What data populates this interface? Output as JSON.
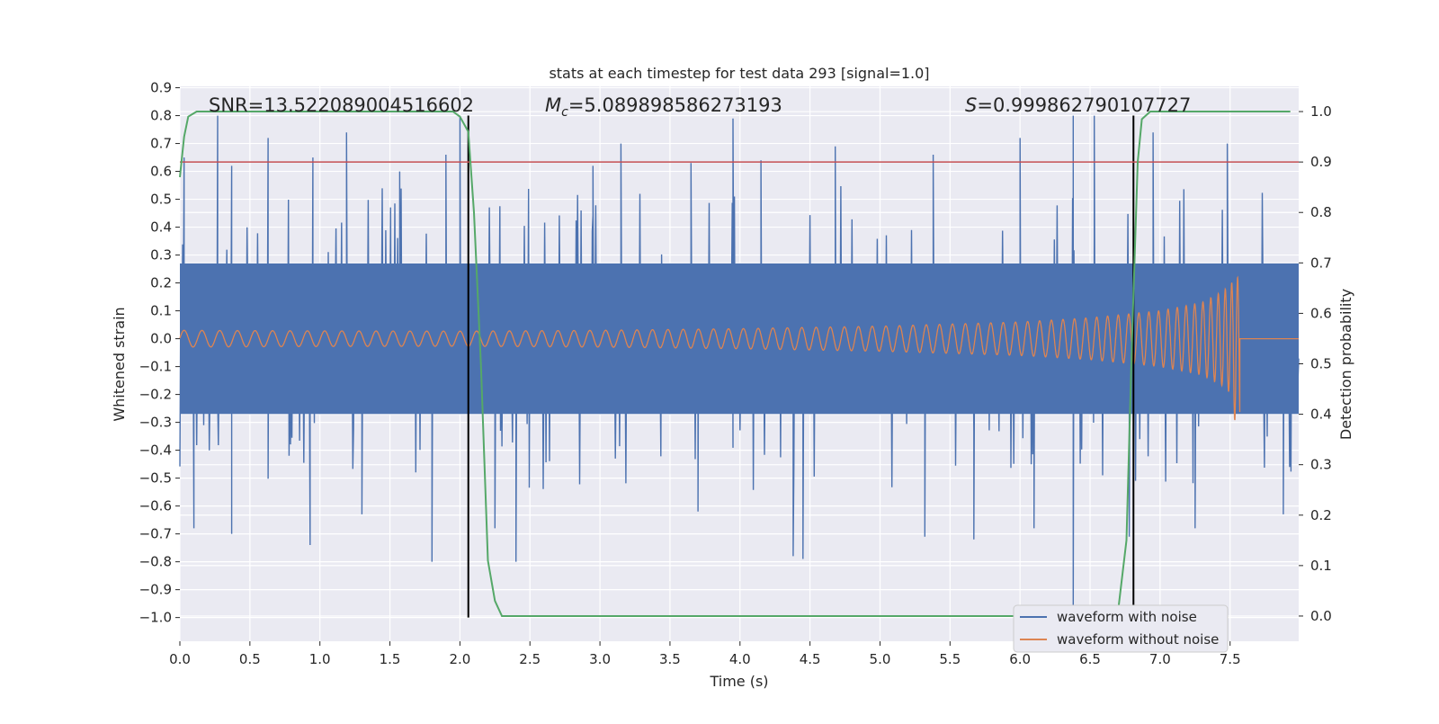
{
  "chart_data": {
    "type": "line",
    "title": "stats at each timestep for test data 293 [signal=1.0]",
    "xlabel": "Time (s)",
    "ylabel": "Whitened strain",
    "ylabel_right": "Detection probability",
    "xlim": [
      0.0,
      7.99
    ],
    "ylim": [
      -1.085,
      0.905
    ],
    "ylim_right": [
      -0.05,
      1.05
    ],
    "xticks": [
      0.0,
      0.5,
      1.0,
      1.5,
      2.0,
      2.5,
      3.0,
      3.5,
      4.0,
      4.5,
      5.0,
      5.5,
      6.0,
      6.5,
      7.0,
      7.5
    ],
    "xtick_labels": [
      "0.0",
      "0.5",
      "1.0",
      "1.5",
      "2.0",
      "2.5",
      "3.0",
      "3.5",
      "4.0",
      "4.5",
      "5.0",
      "5.5",
      "6.0",
      "6.5",
      "7.0",
      "7.5"
    ],
    "yticks": [
      0.9,
      0.8,
      0.7,
      0.6,
      0.5,
      0.4,
      0.3,
      0.2,
      0.1,
      0.0,
      -0.1,
      -0.2,
      -0.3,
      -0.4,
      -0.5,
      -0.6,
      -0.7,
      -0.8,
      -0.9,
      -1.0
    ],
    "ytick_labels": [
      "0.9",
      "0.8",
      "0.7",
      "0.6",
      "0.5",
      "0.4",
      "0.3",
      "0.2",
      "0.1",
      "0.0",
      "−0.1",
      "−0.2",
      "−0.3",
      "−0.4",
      "−0.5",
      "−0.6",
      "−0.7",
      "−0.8",
      "−0.9",
      "−1.0"
    ],
    "yticks_right": [
      1.0,
      0.9,
      0.8,
      0.7,
      0.6,
      0.5,
      0.4,
      0.3,
      0.2,
      0.1,
      0.0
    ],
    "ytick_labels_right": [
      "1.0",
      "0.9",
      "0.8",
      "0.7",
      "0.6",
      "0.5",
      "0.4",
      "0.3",
      "0.2",
      "0.1",
      "0.0"
    ],
    "grid": true,
    "legend_position": "lower-right",
    "annotations": {
      "snr": "SNR=13.522089004516602",
      "mc_symbol": "M",
      "mc_subscript": "c",
      "mc_value": "=5.089898586273193",
      "s_symbol": "S",
      "s_value": "=0.999862790107727"
    },
    "threshold": {
      "value": 0.9,
      "axis": "right",
      "color": "#c44e52"
    },
    "vlines": [
      {
        "x": 2.06,
        "ymin": -1.0,
        "ymax": 0.8,
        "color": "#000000"
      },
      {
        "x": 6.81,
        "ymin": -1.0,
        "ymax": 0.8,
        "color": "#000000"
      }
    ],
    "series": [
      {
        "name": "waveform with noise",
        "color": "#4c72b0",
        "axis": "left",
        "description": "noisy whitened strain, core band about ±0.27, spikes up to about 0.8 and down to about −1.0",
        "peaks": [
          [
            0.03,
            0.65
          ],
          [
            0.27,
            0.8
          ],
          [
            0.37,
            0.62
          ],
          [
            0.63,
            0.72
          ],
          [
            0.95,
            0.65
          ],
          [
            1.19,
            0.74
          ],
          [
            1.57,
            0.6
          ],
          [
            1.9,
            0.66
          ],
          [
            2.0,
            0.8
          ],
          [
            2.95,
            0.62
          ],
          [
            3.15,
            0.7
          ],
          [
            3.65,
            0.63
          ],
          [
            3.95,
            0.79
          ],
          [
            4.15,
            0.64
          ],
          [
            4.68,
            0.69
          ],
          [
            5.38,
            0.66
          ],
          [
            6.0,
            0.72
          ],
          [
            6.38,
            0.8
          ],
          [
            6.53,
            0.8
          ],
          [
            6.95,
            0.74
          ],
          [
            7.48,
            0.7
          ]
        ],
        "troughs": [
          [
            0.1,
            -0.68
          ],
          [
            0.37,
            -0.7
          ],
          [
            0.93,
            -0.74
          ],
          [
            1.3,
            -0.63
          ],
          [
            1.8,
            -0.8
          ],
          [
            2.25,
            -0.68
          ],
          [
            2.4,
            -0.8
          ],
          [
            3.7,
            -0.62
          ],
          [
            4.38,
            -0.78
          ],
          [
            4.45,
            -0.79
          ],
          [
            5.32,
            -0.71
          ],
          [
            5.67,
            -0.72
          ],
          [
            6.1,
            -0.68
          ],
          [
            6.38,
            -0.98
          ],
          [
            6.78,
            -0.71
          ],
          [
            7.25,
            -0.68
          ],
          [
            7.88,
            -0.63
          ]
        ]
      },
      {
        "name": "waveform without noise",
        "color": "#dd8452",
        "axis": "left",
        "description": "chirp signal growing in amplitude until merger near 7.57 s",
        "envelope": [
          [
            0.0,
            0.03
          ],
          [
            1.0,
            0.028
          ],
          [
            2.0,
            0.027
          ],
          [
            3.0,
            0.03
          ],
          [
            4.0,
            0.036
          ],
          [
            5.0,
            0.045
          ],
          [
            6.0,
            0.06
          ],
          [
            6.5,
            0.075
          ],
          [
            7.0,
            0.1
          ],
          [
            7.3,
            0.13
          ],
          [
            7.45,
            0.17
          ],
          [
            7.55,
            0.22
          ],
          [
            7.57,
            0.22
          ]
        ],
        "trough_min": -0.29,
        "merger_time": 7.57,
        "post_merger_value": 0.0
      },
      {
        "name": "",
        "color": "#55a868",
        "axis": "right",
        "points": [
          [
            0.0,
            0.87
          ],
          [
            0.03,
            0.95
          ],
          [
            0.06,
            0.99
          ],
          [
            0.12,
            1.0
          ],
          [
            1.95,
            1.0
          ],
          [
            2.0,
            0.99
          ],
          [
            2.06,
            0.96
          ],
          [
            2.1,
            0.8
          ],
          [
            2.15,
            0.5
          ],
          [
            2.2,
            0.11
          ],
          [
            2.25,
            0.03
          ],
          [
            2.3,
            0.0
          ],
          [
            5.75,
            0.0
          ],
          [
            6.6,
            0.0
          ],
          [
            6.7,
            0.01
          ],
          [
            6.76,
            0.15
          ],
          [
            6.8,
            0.55
          ],
          [
            6.84,
            0.9
          ],
          [
            6.87,
            0.985
          ],
          [
            6.93,
            1.0
          ],
          [
            7.93,
            1.0
          ]
        ]
      }
    ]
  }
}
